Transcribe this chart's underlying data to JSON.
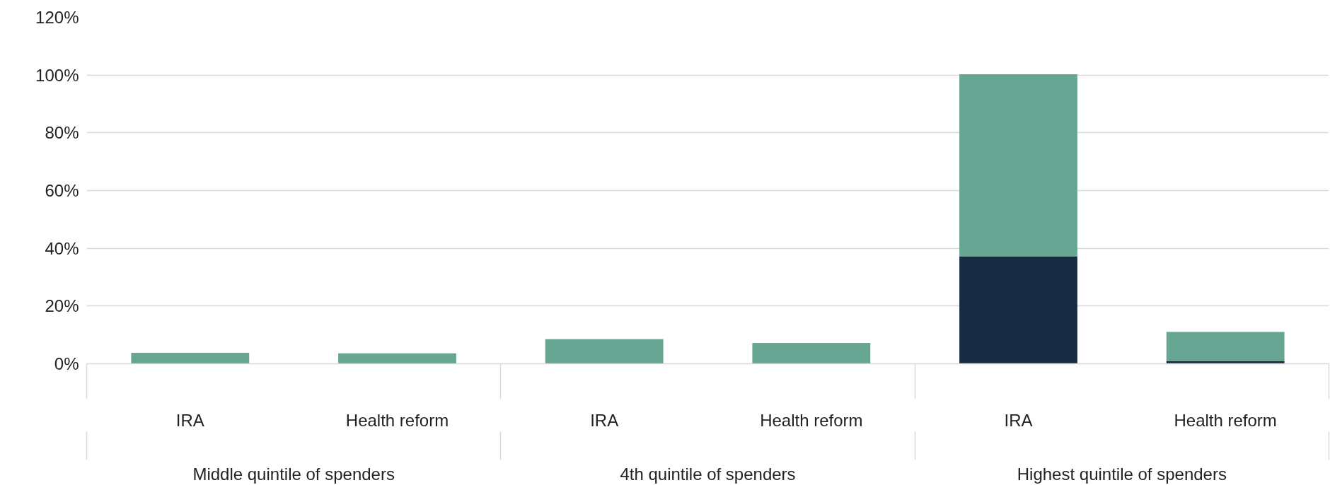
{
  "chart_data": {
    "type": "bar",
    "stacked": true,
    "categories": [
      "IRA",
      "Health reform",
      "IRA",
      "Health reform",
      "IRA",
      "Health reform"
    ],
    "series": [
      {
        "color": "#172b43",
        "values": [
          0,
          0,
          0,
          0,
          37.2,
          1
        ]
      },
      {
        "color": "#66a692",
        "values": [
          3.8,
          3.6,
          8.5,
          7.2,
          63.1,
          10
        ]
      }
    ],
    "annotations": [
      "Middle quintile of spenders",
      "4th quintile of spenders",
      "Highest quintile of spenders"
    ],
    "ylim": [
      0,
      120
    ],
    "yticks": [
      {
        "value": 0,
        "label": "0%"
      },
      {
        "value": 20,
        "label": "20%"
      },
      {
        "value": 40,
        "label": "40%"
      },
      {
        "value": 60,
        "label": "60%"
      },
      {
        "value": 80,
        "label": "80%"
      },
      {
        "value": 100,
        "label": "100%"
      },
      {
        "value": 120,
        "label": "120%"
      }
    ],
    "grid": "y"
  }
}
